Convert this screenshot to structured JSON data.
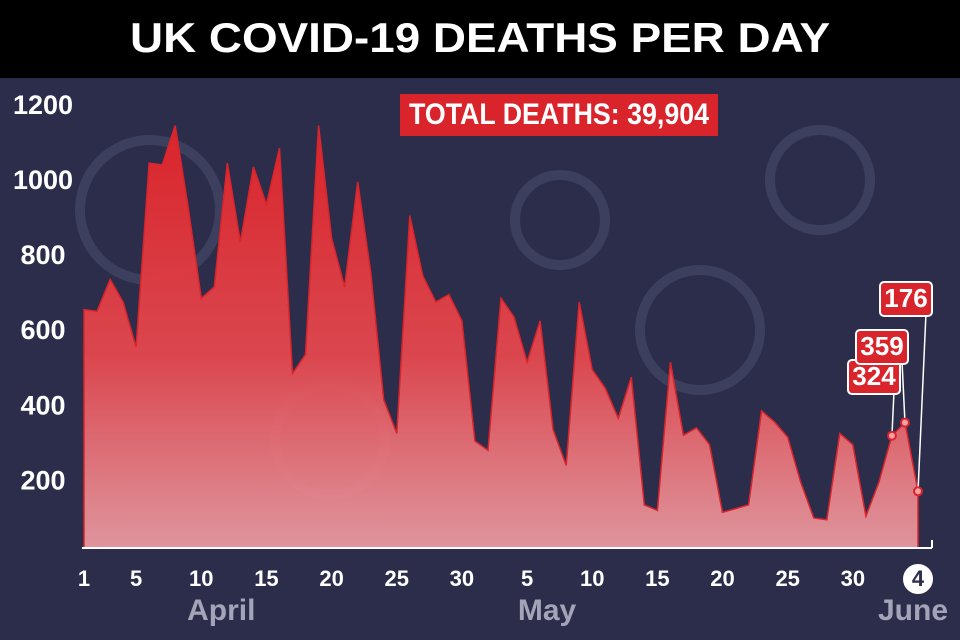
{
  "chart_data": {
    "type": "area",
    "title": "UK COVID-19 DEATHS PER DAY",
    "annotation": "TOTAL DEATHS: 39,904",
    "categories": [
      "1",
      null,
      null,
      null,
      "5",
      null,
      null,
      null,
      null,
      "10",
      null,
      null,
      null,
      null,
      "15",
      null,
      null,
      null,
      null,
      "20",
      null,
      null,
      null,
      null,
      "25",
      null,
      null,
      null,
      null,
      "30",
      null,
      null,
      null,
      null,
      "5",
      null,
      null,
      null,
      null,
      "10",
      null,
      null,
      null,
      null,
      "15",
      null,
      null,
      null,
      null,
      "20",
      null,
      null,
      null,
      null,
      "25",
      null,
      null,
      null,
      null,
      "30",
      null,
      null,
      null,
      null,
      "4"
    ],
    "months": [
      null,
      null,
      null,
      null,
      null,
      null,
      null,
      null,
      null,
      "April",
      null,
      null,
      null,
      null,
      null,
      null,
      null,
      null,
      null,
      null,
      null,
      null,
      null,
      null,
      null,
      null,
      null,
      null,
      null,
      null,
      null,
      null,
      null,
      null,
      "May",
      null,
      null,
      null,
      null,
      null,
      null,
      null,
      null,
      null,
      null,
      null,
      null,
      null,
      null,
      null,
      null,
      null,
      null,
      null,
      null,
      null,
      null,
      null,
      null,
      null,
      null,
      null,
      null,
      null,
      "June"
    ],
    "values": [
      660,
      655,
      740,
      680,
      560,
      1050,
      1045,
      1150,
      930,
      690,
      720,
      1050,
      840,
      1040,
      940,
      1090,
      490,
      540,
      1150,
      850,
      720,
      1000,
      760,
      420,
      330,
      910,
      750,
      680,
      700,
      630,
      310,
      285,
      690,
      640,
      520,
      630,
      340,
      245,
      680,
      500,
      450,
      370,
      480,
      140,
      125,
      520,
      325,
      345,
      300,
      120,
      130,
      140,
      390,
      360,
      320,
      200,
      105,
      100,
      330,
      300,
      110,
      200,
      324,
      359,
      176
    ],
    "value_labels": [
      null,
      null,
      null,
      null,
      null,
      null,
      null,
      null,
      null,
      null,
      null,
      null,
      null,
      null,
      null,
      null,
      null,
      null,
      null,
      null,
      null,
      null,
      null,
      null,
      null,
      null,
      null,
      null,
      null,
      null,
      null,
      null,
      null,
      null,
      null,
      null,
      null,
      null,
      null,
      null,
      null,
      null,
      null,
      null,
      null,
      null,
      null,
      null,
      null,
      null,
      null,
      null,
      null,
      null,
      null,
      null,
      null,
      null,
      null,
      null,
      null,
      null,
      "324",
      "359",
      "176"
    ],
    "color": "#d9242b",
    "ylim": [
      25,
      1250
    ],
    "yticks": [
      200,
      400,
      600,
      800,
      1000,
      1200
    ]
  }
}
